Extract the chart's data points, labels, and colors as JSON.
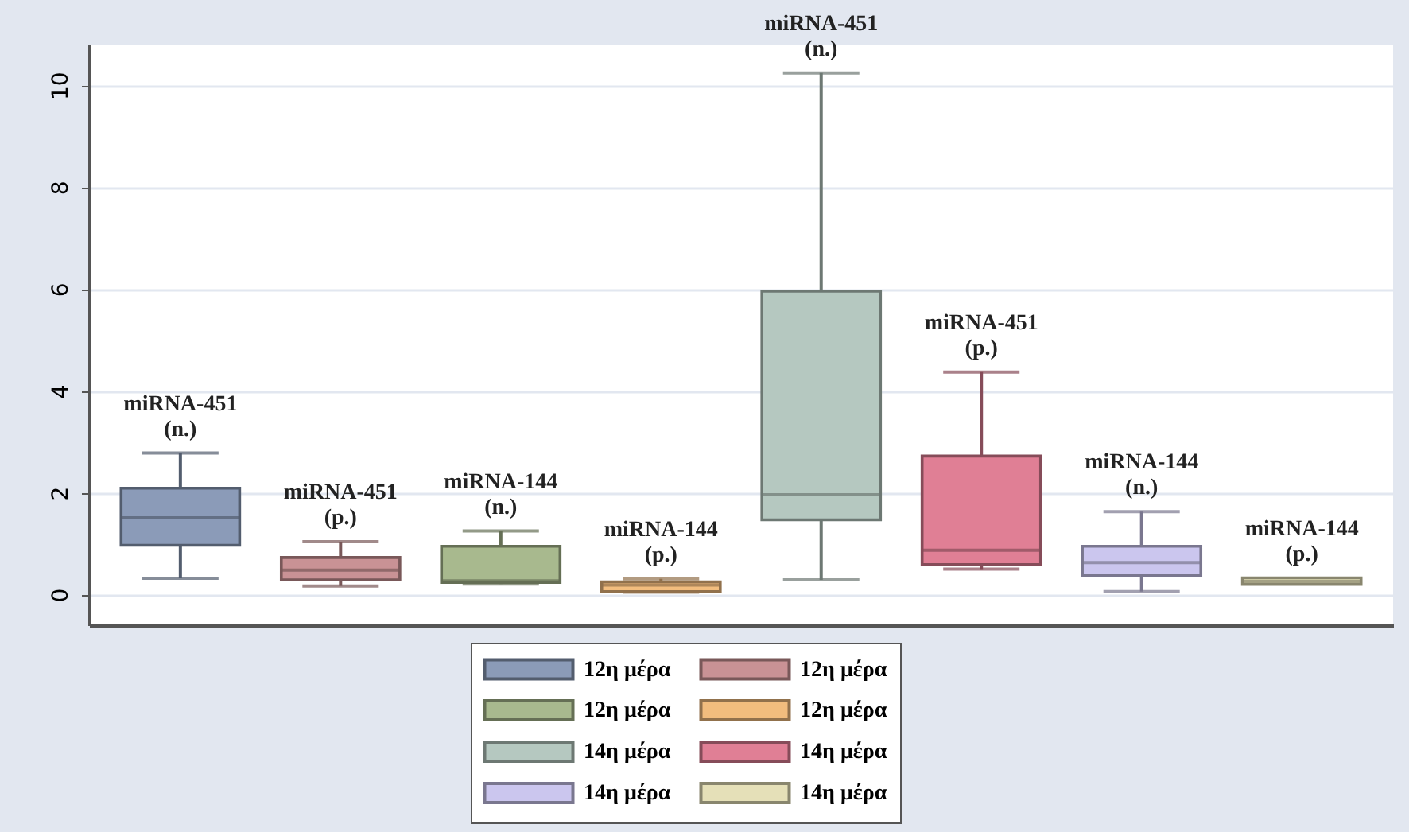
{
  "chart_data": {
    "type": "box",
    "categories": [
      null,
      null,
      null,
      null,
      null,
      null,
      null,
      null
    ],
    "series": [
      {
        "name": "12η μέρα",
        "color": "#8b9bb8",
        "boxes": [
          {
            "low": 0.32,
            "q1": 0.97,
            "median": 1.51,
            "q3": 2.09,
            "high": 2.78
          },
          null,
          null,
          null,
          null,
          null,
          null,
          null
        ]
      },
      {
        "name": "12η μέρα",
        "color": "#c99295",
        "boxes": [
          null,
          {
            "low": 0.17,
            "q1": 0.29,
            "median": 0.48,
            "q3": 0.73,
            "high": 1.04
          },
          null,
          null,
          null,
          null,
          null,
          null
        ]
      },
      {
        "name": "12η μέρα",
        "color": "#a8b98e",
        "boxes": [
          null,
          null,
          {
            "low": 0.21,
            "q1": 0.24,
            "median": 0.27,
            "q3": 0.95,
            "high": 1.25
          },
          null,
          null,
          null,
          null,
          null
        ]
      },
      {
        "name": "12η μέρα",
        "color": "#f2bd7e",
        "boxes": [
          null,
          null,
          null,
          {
            "low": 0.05,
            "q1": 0.06,
            "median": 0.19,
            "q3": 0.25,
            "high": 0.31
          },
          null,
          null,
          null,
          null
        ]
      },
      {
        "name": "14η μέρα",
        "color": "#b5c8c0",
        "boxes": [
          null,
          null,
          null,
          null,
          {
            "low": 0.29,
            "q1": 1.47,
            "median": 1.96,
            "q3": 5.96,
            "high": 10.24
          },
          null,
          null,
          null
        ]
      },
      {
        "name": "14η μέρα",
        "color": "#e07f95",
        "boxes": [
          null,
          null,
          null,
          null,
          null,
          {
            "low": 0.5,
            "q1": 0.59,
            "median": 0.87,
            "q3": 2.72,
            "high": 4.37
          },
          null,
          null
        ]
      },
      {
        "name": "14η μέρα",
        "color": "#cbc6ee",
        "boxes": [
          null,
          null,
          null,
          null,
          null,
          null,
          {
            "low": 0.06,
            "q1": 0.37,
            "median": 0.63,
            "q3": 0.95,
            "high": 1.63
          },
          null
        ]
      },
      {
        "name": "14η μέρα",
        "color": "#e5e0b8",
        "boxes": [
          null,
          null,
          null,
          null,
          null,
          null,
          null,
          {
            "low": 0.2,
            "q1": 0.2,
            "median": 0.26,
            "q3": 0.33,
            "high": 0.33
          }
        ]
      }
    ],
    "annotations": [
      {
        "text": "miRNA-451 (n.)",
        "y": 2.78
      },
      {
        "text": "miRNA-451 (p.)",
        "y": 1.04
      },
      {
        "text": "miRNA-144 (n.)",
        "y": 1.25
      },
      {
        "text": "miRNA-144 (p.)",
        "y": 0.31
      },
      {
        "text": "miRNA-451 (n.)",
        "y": 10.24
      },
      {
        "text": "miRNA-451 (p.)",
        "y": 4.37
      },
      {
        "text": "miRNA-144 (n.)",
        "y": 1.63
      },
      {
        "text": "miRNA-144 (p.)",
        "y": 0.32
      }
    ],
    "ylim": [
      -0.6,
      10.8
    ],
    "yticks": [
      0,
      2,
      4,
      6,
      8,
      10
    ],
    "grid": "y",
    "legend": "bottom",
    "tick_labels": "y"
  }
}
